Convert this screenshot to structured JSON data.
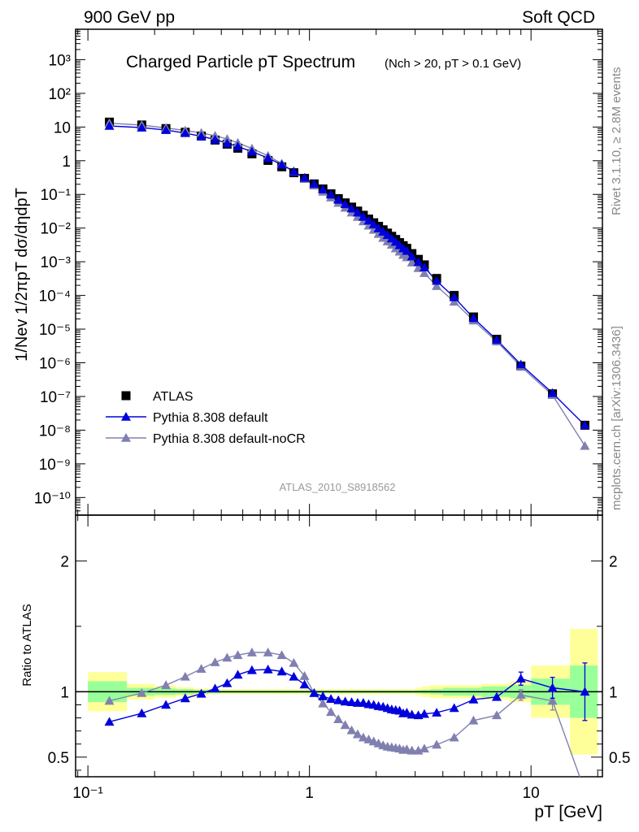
{
  "header": {
    "left": "900 GeV pp",
    "right": "Soft QCD"
  },
  "side_labels": {
    "rivet": "Rivet 3.1.10, ≥ 2.8M events",
    "mcplots": "mcplots.cern.ch [arXiv:1306.3436]"
  },
  "analysis_tag": "ATLAS_2010_S8918562",
  "colors": {
    "data": "#000000",
    "pythia_default": "#0000dd",
    "pythia_nocr": "#8080b0",
    "band_green": "#99ff99",
    "band_yellow": "#ffff99"
  },
  "chart_data": [
    {
      "type": "scatter",
      "panel": "main",
      "title": "Charged Particle pT Spectrum",
      "subtitle": "(Nch > 20, pT > 0.1 GeV)",
      "ylabel": "1/Nev 1/2πpT dσ/dηdpT",
      "xlabel": "pT [GeV]",
      "xscale": "log",
      "yscale": "log",
      "xlim": [
        0.088,
        21
      ],
      "ylim": [
        3e-11,
        8000
      ],
      "ytick_labels": [
        "10^-10",
        "10^-9",
        "10^-8",
        "10^-7",
        "10^-6",
        "10^-5",
        "10^-4",
        "10^-3",
        "10^-2",
        "10^-1",
        "1",
        "10",
        "10^2",
        "10^3"
      ],
      "legend_position": "bottom-left",
      "series": [
        {
          "name": "ATLAS",
          "marker": "square",
          "x": [
            0.125,
            0.175,
            0.225,
            0.275,
            0.325,
            0.375,
            0.425,
            0.475,
            0.55,
            0.65,
            0.75,
            0.85,
            0.95,
            1.05,
            1.15,
            1.25,
            1.35,
            1.45,
            1.55,
            1.65,
            1.75,
            1.85,
            1.95,
            2.05,
            2.15,
            2.25,
            2.35,
            2.45,
            2.55,
            2.65,
            2.75,
            2.9,
            3.1,
            3.3,
            3.75,
            4.5,
            5.5,
            7.0,
            9.0,
            12.5,
            17.5
          ],
          "y": [
            14,
            11.5,
            9,
            7,
            5.4,
            4.1,
            3.1,
            2.35,
            1.6,
            1.02,
            0.66,
            0.44,
            0.3,
            0.205,
            0.145,
            0.104,
            0.075,
            0.056,
            0.042,
            0.032,
            0.024,
            0.0185,
            0.0144,
            0.0113,
            0.0089,
            0.0071,
            0.0057,
            0.0046,
            0.0037,
            0.003,
            0.0025,
            0.00175,
            0.00118,
            0.00081,
            0.00032,
            0.0001,
            2.3e-05,
            5e-06,
            8e-07,
            1.2e-07,
            1.4e-08
          ]
        },
        {
          "name": "Pythia 8.308 default",
          "marker": "triangle",
          "x": [
            0.125,
            0.175,
            0.225,
            0.275,
            0.325,
            0.375,
            0.425,
            0.475,
            0.55,
            0.65,
            0.75,
            0.85,
            0.95,
            1.05,
            1.15,
            1.25,
            1.35,
            1.45,
            1.55,
            1.65,
            1.75,
            1.85,
            1.95,
            2.05,
            2.15,
            2.25,
            2.35,
            2.45,
            2.55,
            2.65,
            2.75,
            2.9,
            3.1,
            3.3,
            3.75,
            4.5,
            5.5,
            7.0,
            9.0,
            12.5,
            17.5
          ],
          "y": [
            10.8,
            9.6,
            8.1,
            6.6,
            5.3,
            4.25,
            3.3,
            2.65,
            1.86,
            1.2,
            0.76,
            0.48,
            0.31,
            0.203,
            0.14,
            0.098,
            0.069,
            0.051,
            0.038,
            0.0288,
            0.0215,
            0.0166,
            0.0128,
            0.0098,
            0.0078,
            0.0062,
            0.0049,
            0.0039,
            0.0031,
            0.0025,
            0.0021,
            0.00144,
            0.00098,
            0.00068,
            0.00027,
            8.8e-05,
            2.12e-05,
            4.8e-06,
            8.9e-07,
            1.26e-07,
            1.4e-08
          ]
        },
        {
          "name": "Pythia 8.308 default-noCR",
          "marker": "triangle",
          "x": [
            0.125,
            0.175,
            0.225,
            0.275,
            0.325,
            0.375,
            0.425,
            0.475,
            0.55,
            0.65,
            0.75,
            0.85,
            0.95,
            1.05,
            1.15,
            1.25,
            1.35,
            1.45,
            1.55,
            1.65,
            1.75,
            1.85,
            1.95,
            2.05,
            2.15,
            2.25,
            2.35,
            2.45,
            2.55,
            2.65,
            2.75,
            2.9,
            3.1,
            3.3,
            3.75,
            4.5,
            5.5,
            7.0,
            9.0,
            12.5,
            17.5
          ],
          "y": [
            13,
            11.4,
            9.4,
            7.9,
            6.7,
            5.5,
            4.4,
            3.4,
            2.3,
            1.4,
            0.82,
            0.47,
            0.29,
            0.183,
            0.12,
            0.081,
            0.056,
            0.04,
            0.029,
            0.0215,
            0.0158,
            0.0118,
            0.0089,
            0.0067,
            0.0051,
            0.004,
            0.0032,
            0.0025,
            0.002,
            0.0016,
            0.00135,
            0.00095,
            0.00065,
            0.00046,
            0.00019,
            6.5e-05,
            1.8e-05,
            4.3e-06,
            7.8e-07,
            1.1e-07,
            3.4e-09
          ]
        }
      ]
    },
    {
      "type": "line",
      "panel": "ratio",
      "ylabel": "Ratio to ATLAS",
      "xlabel": "pT [GeV]",
      "xscale": "log",
      "xlim": [
        0.088,
        21
      ],
      "ylim": [
        0.35,
        2.35
      ],
      "ytick_labels": [
        "0.5",
        "1",
        "2"
      ],
      "xtick_labels": [
        "10^-1",
        "1",
        "10"
      ],
      "reference_line": 1,
      "bands": {
        "x_edges": [
          0.1,
          0.15,
          0.2,
          0.25,
          0.3,
          0.35,
          0.4,
          0.45,
          0.5,
          0.6,
          0.7,
          0.8,
          0.9,
          1.0,
          1.1,
          1.2,
          1.3,
          1.4,
          1.5,
          1.6,
          1.7,
          1.8,
          1.9,
          2.0,
          2.1,
          2.2,
          2.3,
          2.4,
          2.5,
          2.6,
          2.7,
          2.8,
          3.0,
          3.2,
          3.5,
          4.0,
          5.0,
          6.0,
          8.0,
          10.0,
          15.0,
          20.0
        ],
        "green": [
          0.08,
          0.03,
          0.025,
          0.02,
          0.015,
          0.012,
          0.01,
          0.01,
          0.01,
          0.01,
          0.01,
          0.01,
          0.01,
          0.01,
          0.01,
          0.01,
          0.01,
          0.01,
          0.01,
          0.01,
          0.01,
          0.01,
          0.01,
          0.01,
          0.01,
          0.01,
          0.01,
          0.01,
          0.01,
          0.01,
          0.01,
          0.01,
          0.012,
          0.015,
          0.02,
          0.03,
          0.03,
          0.04,
          0.05,
          0.1,
          0.2
        ],
        "yellow": [
          0.15,
          0.06,
          0.045,
          0.035,
          0.025,
          0.02,
          0.02,
          0.02,
          0.02,
          0.02,
          0.02,
          0.02,
          0.02,
          0.02,
          0.02,
          0.02,
          0.02,
          0.02,
          0.02,
          0.02,
          0.02,
          0.02,
          0.02,
          0.02,
          0.02,
          0.02,
          0.02,
          0.02,
          0.02,
          0.02,
          0.02,
          0.02,
          0.03,
          0.04,
          0.05,
          0.05,
          0.05,
          0.06,
          0.08,
          0.2,
          0.48
        ]
      },
      "series": [
        {
          "name": "Pythia 8.308 default",
          "x": [
            0.125,
            0.175,
            0.225,
            0.275,
            0.325,
            0.375,
            0.425,
            0.475,
            0.55,
            0.65,
            0.75,
            0.85,
            0.95,
            1.05,
            1.15,
            1.25,
            1.35,
            1.45,
            1.55,
            1.65,
            1.75,
            1.85,
            1.95,
            2.05,
            2.15,
            2.25,
            2.35,
            2.45,
            2.55,
            2.65,
            2.75,
            2.9,
            3.1,
            3.3,
            3.75,
            4.5,
            5.5,
            7.0,
            9.0,
            12.5,
            17.5
          ],
          "y": [
            0.77,
            0.835,
            0.9,
            0.95,
            0.985,
            1.025,
            1.065,
            1.13,
            1.165,
            1.17,
            1.155,
            1.115,
            1.055,
            0.99,
            0.965,
            0.945,
            0.935,
            0.925,
            0.92,
            0.915,
            0.915,
            0.905,
            0.9,
            0.89,
            0.885,
            0.875,
            0.865,
            0.86,
            0.855,
            0.835,
            0.84,
            0.825,
            0.82,
            0.83,
            0.84,
            0.875,
            0.94,
            0.96,
            1.1,
            1.03,
            1.0
          ],
          "err": [
            0,
            0,
            0,
            0,
            0,
            0,
            0,
            0,
            0,
            0,
            0,
            0,
            0,
            0,
            0,
            0,
            0,
            0,
            0,
            0,
            0,
            0,
            0,
            0,
            0,
            0,
            0,
            0,
            0,
            0,
            0,
            0,
            0,
            0,
            0,
            0,
            0,
            0,
            0.05,
            0.08,
            0.22
          ]
        },
        {
          "name": "Pythia 8.308 default-noCR",
          "x": [
            0.125,
            0.175,
            0.225,
            0.275,
            0.325,
            0.375,
            0.425,
            0.475,
            0.55,
            0.65,
            0.75,
            0.85,
            0.95,
            1.05,
            1.15,
            1.25,
            1.35,
            1.45,
            1.55,
            1.65,
            1.75,
            1.85,
            1.95,
            2.05,
            2.15,
            2.25,
            2.35,
            2.45,
            2.55,
            2.65,
            2.75,
            2.9,
            3.1,
            3.3,
            3.75,
            4.5,
            5.5,
            7.0,
            9.0,
            12.5,
            17.5
          ],
          "y": [
            0.93,
            0.99,
            1.05,
            1.115,
            1.175,
            1.225,
            1.26,
            1.28,
            1.3,
            1.3,
            1.28,
            1.22,
            1.12,
            0.99,
            0.91,
            0.845,
            0.79,
            0.745,
            0.705,
            0.675,
            0.65,
            0.635,
            0.62,
            0.605,
            0.59,
            0.58,
            0.575,
            0.57,
            0.565,
            0.555,
            0.56,
            0.55,
            0.55,
            0.565,
            0.595,
            0.65,
            0.78,
            0.82,
            0.975,
            0.93,
            0.24
          ],
          "err": [
            0,
            0,
            0,
            0,
            0,
            0,
            0,
            0,
            0,
            0,
            0,
            0,
            0,
            0,
            0,
            0,
            0,
            0,
            0,
            0,
            0,
            0,
            0,
            0,
            0,
            0,
            0,
            0,
            0,
            0,
            0,
            0,
            0,
            0,
            0,
            0,
            0,
            0,
            0.04,
            0.07,
            0.2
          ]
        }
      ]
    }
  ]
}
